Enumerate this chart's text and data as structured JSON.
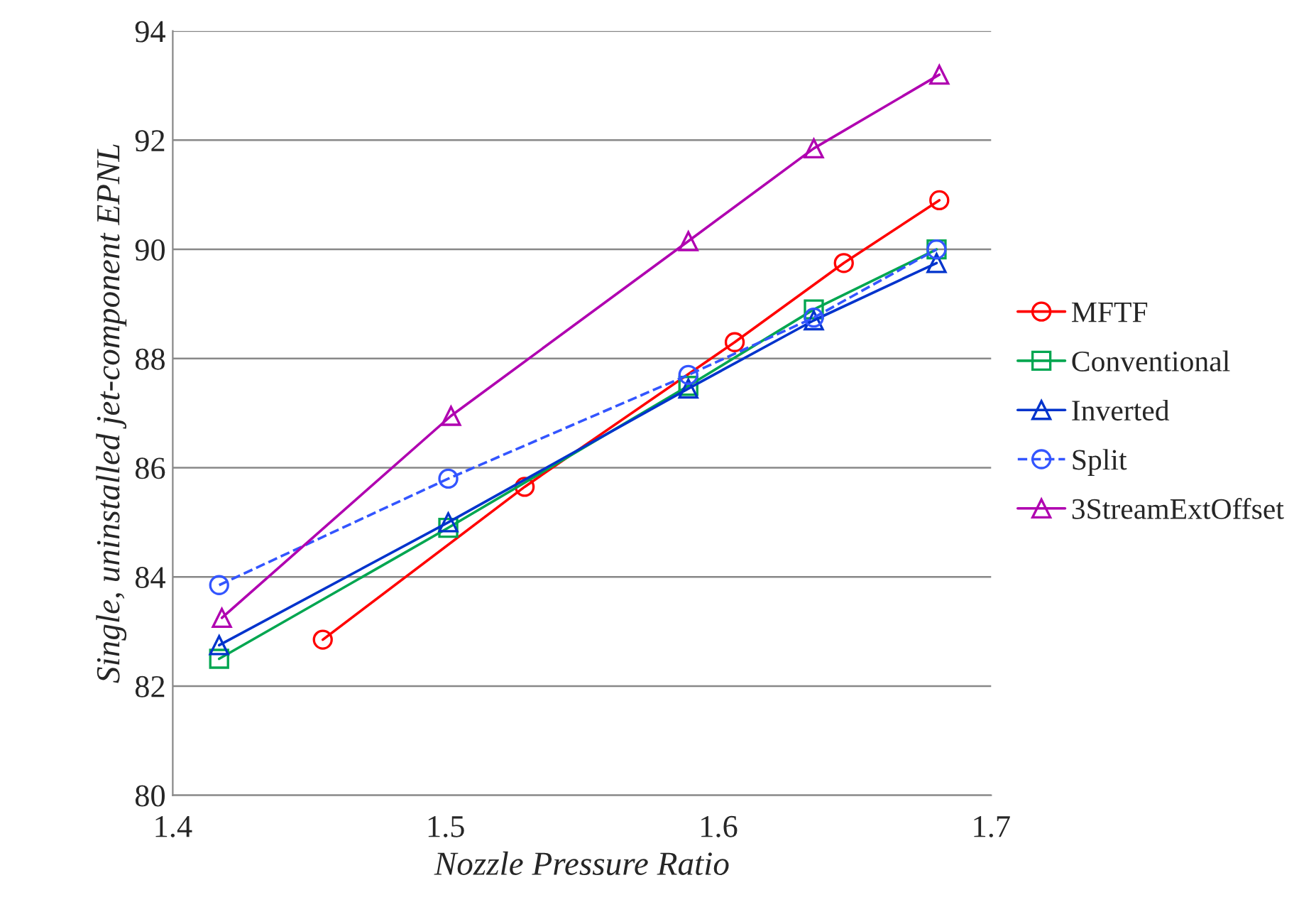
{
  "chart_data": {
    "type": "line",
    "xlabel": "Nozzle Pressure Ratio",
    "ylabel": "Single, uninstalled jet-component EPNL",
    "xlim": [
      1.4,
      1.7
    ],
    "xticks": [
      {
        "value": 1.4,
        "label": "1.4"
      },
      {
        "value": 1.5,
        "label": "1.5"
      },
      {
        "value": 1.6,
        "label": "1.6"
      },
      {
        "value": 1.7,
        "label": "1.7"
      }
    ],
    "ylim": [
      80,
      94
    ],
    "yticks": [
      80,
      82,
      84,
      86,
      88,
      90,
      92,
      94
    ],
    "grid": "y",
    "legend": "right",
    "series": [
      {
        "name": "MFTF",
        "color": "#ff0000",
        "marker": "circle",
        "line_style": "solid",
        "x": [
          1.455,
          1.529,
          1.606,
          1.646,
          1.681
        ],
        "values": [
          82.85,
          85.65,
          88.3,
          89.75,
          90.9
        ]
      },
      {
        "name": "Conventional",
        "color": "#00a650",
        "marker": "square",
        "line_style": "solid",
        "x": [
          1.417,
          1.501,
          1.589,
          1.635,
          1.68
        ],
        "values": [
          82.5,
          84.9,
          87.5,
          88.9,
          90.0
        ]
      },
      {
        "name": "Inverted",
        "color": "#0033cc",
        "marker": "triangle",
        "line_style": "solid",
        "x": [
          1.417,
          1.501,
          1.589,
          1.635,
          1.68
        ],
        "values": [
          82.75,
          85.0,
          87.45,
          88.7,
          89.75
        ]
      },
      {
        "name": "Split",
        "color": "#3355ff",
        "marker": "circle",
        "line_style": "dashed",
        "x": [
          1.417,
          1.501,
          1.589,
          1.635,
          1.68
        ],
        "values": [
          83.85,
          85.8,
          87.7,
          88.75,
          90.0
        ]
      },
      {
        "name": "3StreamExtOffset",
        "color": "#b000b0",
        "marker": "triangle",
        "line_style": "solid",
        "x": [
          1.418,
          1.502,
          1.589,
          1.635,
          1.681
        ],
        "values": [
          83.25,
          86.95,
          90.15,
          91.85,
          93.2
        ]
      }
    ]
  }
}
